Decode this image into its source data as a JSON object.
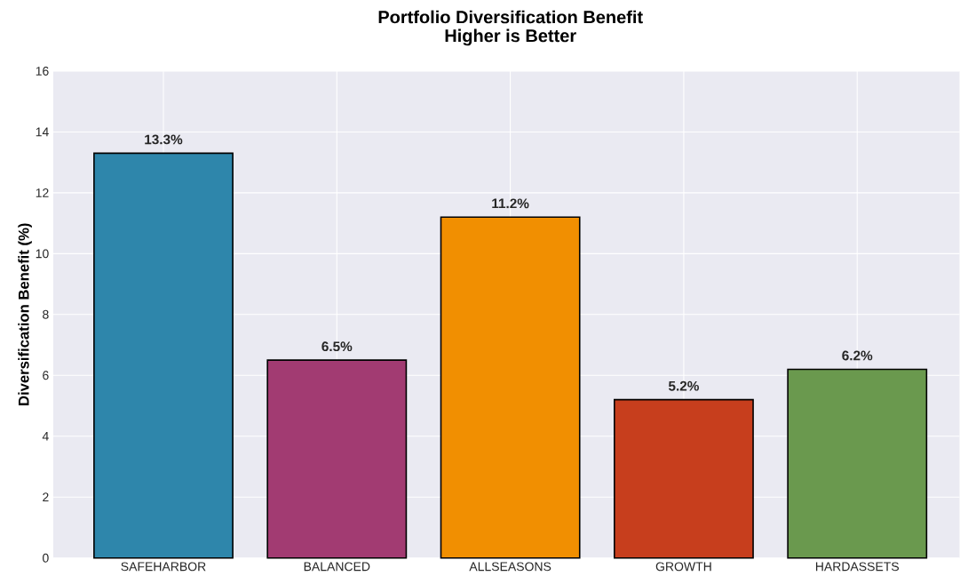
{
  "chart_data": {
    "type": "bar",
    "title": "Portfolio Diversification Benefit",
    "subtitle": "Higher is Better",
    "ylabel": "Diversification Benefit (%)",
    "categories": [
      "SAFEHARBOR",
      "BALANCED",
      "ALLSEASONS",
      "GROWTH",
      "HARDASSETS"
    ],
    "values": [
      13.3,
      6.5,
      11.2,
      5.2,
      6.2
    ],
    "colors": [
      "#2e86ab",
      "#a23b72",
      "#f18f01",
      "#c73e1d",
      "#6a994e"
    ],
    "value_labels": [
      "13.3%",
      "6.5%",
      "11.2%",
      "5.2%",
      "6.2%"
    ],
    "ylim": [
      0,
      16
    ],
    "yticks": [
      0,
      2,
      4,
      6,
      8,
      10,
      12,
      14,
      16
    ],
    "grid": true
  }
}
